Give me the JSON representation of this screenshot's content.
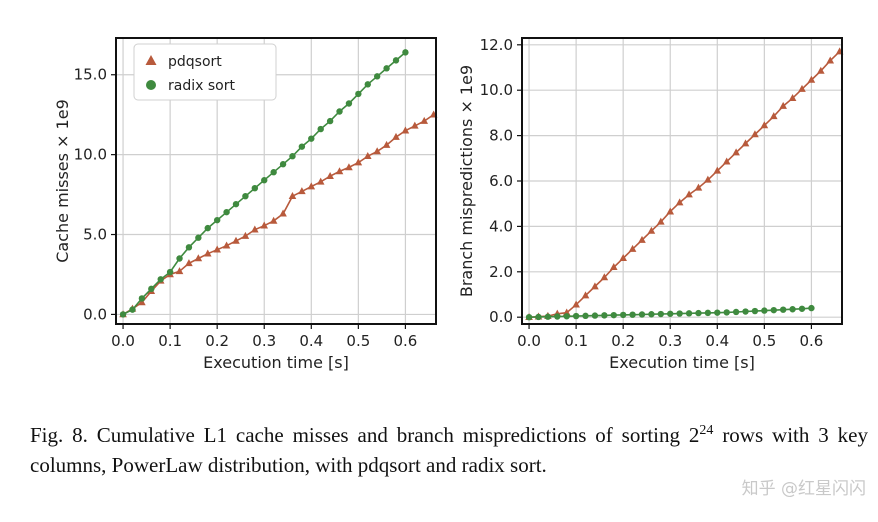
{
  "chart_data": [
    {
      "type": "line",
      "ylabel": "Cache misses × 1e9",
      "xlabel": "Execution time [s]",
      "xlim": [
        -0.015,
        0.665
      ],
      "ylim": [
        -0.6,
        17.3
      ],
      "xticks": [
        "0.0",
        "0.1",
        "0.2",
        "0.3",
        "0.4",
        "0.5",
        "0.6"
      ],
      "xtick_values": [
        0.0,
        0.1,
        0.2,
        0.3,
        0.4,
        0.5,
        0.6
      ],
      "yticks": [
        "0.0",
        "5.0",
        "10.0",
        "15.0"
      ],
      "ytick_values": [
        0,
        5,
        10,
        15
      ],
      "grid": true,
      "legend": "top-left",
      "series": [
        {
          "name": "pdqsort",
          "marker": "triangle",
          "color": "#b85a3c",
          "x": [
            0.0,
            0.02,
            0.04,
            0.06,
            0.08,
            0.1,
            0.12,
            0.14,
            0.16,
            0.18,
            0.2,
            0.22,
            0.24,
            0.26,
            0.28,
            0.3,
            0.32,
            0.34,
            0.36,
            0.38,
            0.4,
            0.42,
            0.44,
            0.46,
            0.48,
            0.5,
            0.52,
            0.54,
            0.56,
            0.58,
            0.6,
            0.62,
            0.64,
            0.66
          ],
          "y": [
            0.0,
            0.35,
            0.75,
            1.45,
            2.1,
            2.5,
            2.7,
            3.2,
            3.5,
            3.8,
            4.05,
            4.3,
            4.6,
            4.9,
            5.3,
            5.55,
            5.85,
            6.3,
            7.4,
            7.7,
            8.0,
            8.3,
            8.65,
            8.95,
            9.2,
            9.5,
            9.9,
            10.2,
            10.6,
            11.1,
            11.5,
            11.8,
            12.1,
            12.5
          ]
        },
        {
          "name": "radix sort",
          "marker": "circle",
          "color": "#3f8a3f",
          "x": [
            0.0,
            0.02,
            0.04,
            0.06,
            0.08,
            0.1,
            0.12,
            0.14,
            0.16,
            0.18,
            0.2,
            0.22,
            0.24,
            0.26,
            0.28,
            0.3,
            0.32,
            0.34,
            0.36,
            0.38,
            0.4,
            0.42,
            0.44,
            0.46,
            0.48,
            0.5,
            0.52,
            0.54,
            0.56,
            0.58,
            0.6
          ],
          "y": [
            0.0,
            0.3,
            1.0,
            1.6,
            2.2,
            2.65,
            3.5,
            4.2,
            4.8,
            5.4,
            5.9,
            6.4,
            6.9,
            7.4,
            7.9,
            8.4,
            8.9,
            9.4,
            9.9,
            10.5,
            11.0,
            11.6,
            12.1,
            12.7,
            13.2,
            13.8,
            14.4,
            14.9,
            15.4,
            15.9,
            16.4
          ]
        }
      ]
    },
    {
      "type": "line",
      "ylabel": "Branch mispredictions × 1e9",
      "xlabel": "Execution time [s]",
      "xlim": [
        -0.015,
        0.665
      ],
      "ylim": [
        -0.3,
        12.3
      ],
      "xticks": [
        "0.0",
        "0.1",
        "0.2",
        "0.3",
        "0.4",
        "0.5",
        "0.6"
      ],
      "xtick_values": [
        0.0,
        0.1,
        0.2,
        0.3,
        0.4,
        0.5,
        0.6
      ],
      "yticks": [
        "0.0",
        "2.0",
        "4.0",
        "6.0",
        "8.0",
        "10.0",
        "12.0"
      ],
      "ytick_values": [
        0,
        2,
        4,
        6,
        8,
        10,
        12
      ],
      "grid": true,
      "series": [
        {
          "name": "pdqsort",
          "marker": "triangle",
          "color": "#b85a3c",
          "x": [
            0.0,
            0.02,
            0.04,
            0.06,
            0.08,
            0.1,
            0.12,
            0.14,
            0.16,
            0.18,
            0.2,
            0.22,
            0.24,
            0.26,
            0.28,
            0.3,
            0.32,
            0.34,
            0.36,
            0.38,
            0.4,
            0.42,
            0.44,
            0.46,
            0.48,
            0.5,
            0.52,
            0.54,
            0.56,
            0.58,
            0.6,
            0.62,
            0.64,
            0.66
          ],
          "y": [
            0.0,
            0.02,
            0.05,
            0.15,
            0.2,
            0.55,
            0.95,
            1.35,
            1.75,
            2.2,
            2.6,
            3.0,
            3.4,
            3.8,
            4.2,
            4.65,
            5.05,
            5.4,
            5.7,
            6.05,
            6.45,
            6.85,
            7.25,
            7.65,
            8.05,
            8.45,
            8.85,
            9.3,
            9.65,
            10.05,
            10.45,
            10.85,
            11.3,
            11.7
          ]
        },
        {
          "name": "radix sort",
          "marker": "circle",
          "color": "#3f8a3f",
          "x": [
            0.0,
            0.02,
            0.04,
            0.06,
            0.08,
            0.1,
            0.12,
            0.14,
            0.16,
            0.18,
            0.2,
            0.22,
            0.24,
            0.26,
            0.28,
            0.3,
            0.32,
            0.34,
            0.36,
            0.38,
            0.4,
            0.42,
            0.44,
            0.46,
            0.48,
            0.5,
            0.52,
            0.54,
            0.56,
            0.58,
            0.6
          ],
          "y": [
            0.0,
            0.01,
            0.02,
            0.03,
            0.04,
            0.05,
            0.06,
            0.07,
            0.08,
            0.09,
            0.1,
            0.11,
            0.12,
            0.13,
            0.14,
            0.15,
            0.16,
            0.17,
            0.18,
            0.19,
            0.2,
            0.21,
            0.23,
            0.25,
            0.27,
            0.29,
            0.31,
            0.33,
            0.35,
            0.37,
            0.4
          ]
        }
      ]
    }
  ],
  "caption": {
    "prefix": "Fig. 8.  Cumulative L1 cache misses and branch mispredictions of sorting",
    "base": "2",
    "exponent": "24",
    "suffix": " rows with 3 key columns, PowerLaw distribution, with pdqsort and radix sort."
  },
  "watermark": "知乎 @红星闪闪"
}
